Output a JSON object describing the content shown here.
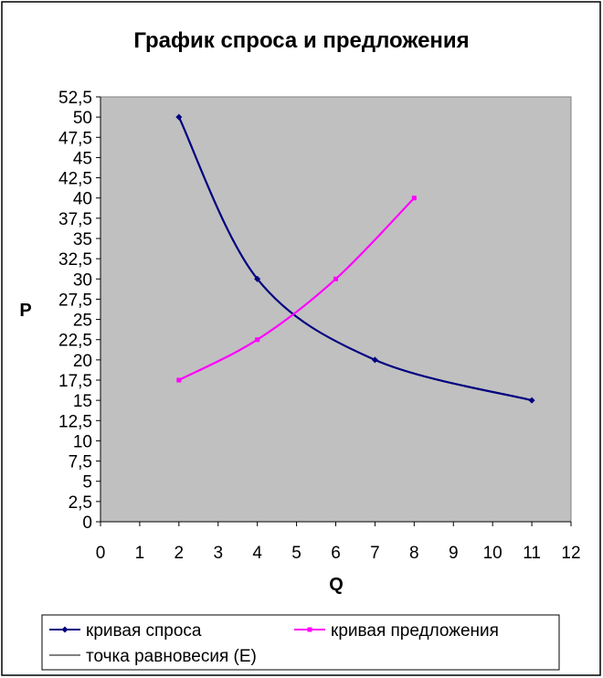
{
  "chart_data": {
    "type": "line",
    "title": "График спроса и предложения",
    "xlabel": "Q",
    "ylabel": "P",
    "xlim": [
      0,
      12
    ],
    "ylim": [
      0,
      52.5
    ],
    "x_ticks": [
      "0",
      "1",
      "2",
      "3",
      "4",
      "5",
      "6",
      "7",
      "8",
      "9",
      "10",
      "11",
      "12"
    ],
    "y_ticks": [
      "0",
      "2,5",
      "5",
      "7,5",
      "10",
      "12,5",
      "15",
      "17,5",
      "20",
      "22,5",
      "25",
      "27,5",
      "30",
      "32,5",
      "35",
      "37,5",
      "40",
      "42,5",
      "45",
      "47,5",
      "50",
      "52,5"
    ],
    "grid": false,
    "plot_background": "#c0c0c0",
    "legend_position": "bottom",
    "series": [
      {
        "name": "кривая спроса",
        "color": "#000080",
        "marker": "diamond",
        "points": [
          [
            2,
            50
          ],
          [
            4,
            30
          ],
          [
            7,
            20
          ],
          [
            11,
            15
          ]
        ]
      },
      {
        "name": "кривая предложения",
        "color": "#ff00ff",
        "marker": "square",
        "points": [
          [
            2,
            17.5
          ],
          [
            4,
            22.5
          ],
          [
            6,
            30
          ],
          [
            8,
            40
          ]
        ]
      },
      {
        "name": "точка равновесия (E)",
        "color": "#000000",
        "marker": "none",
        "points": []
      }
    ]
  }
}
